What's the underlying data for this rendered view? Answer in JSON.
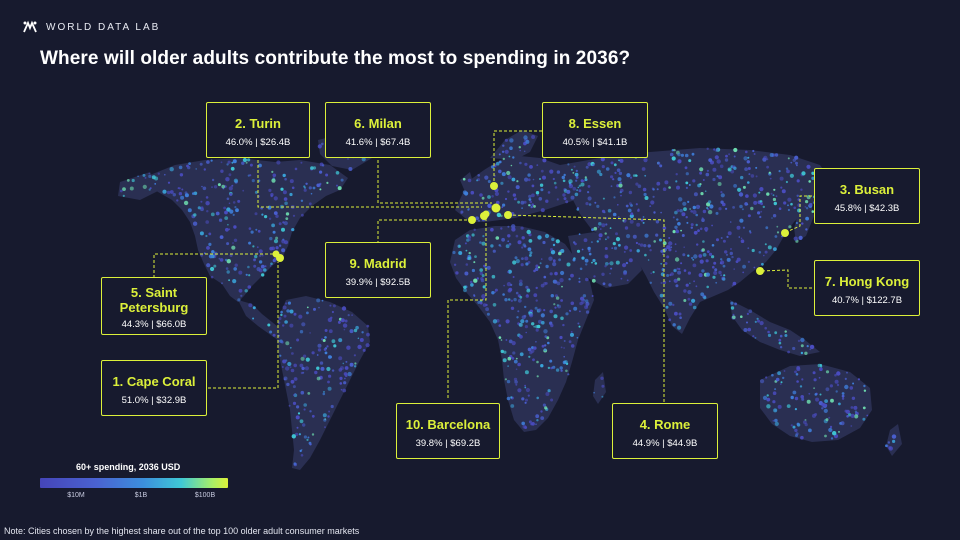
{
  "brand": {
    "name": "WORLD DATA LAB"
  },
  "title": "Where will older adults contribute the most to spending in 2036?",
  "colors": {
    "background": "#171a2e",
    "land": "#2a2f52",
    "highlight": "#dcf03a",
    "callout_border": "#dcf03a"
  },
  "callouts": [
    {
      "rank": "1",
      "city": "Cape Coral",
      "label": "1. Cape Coral",
      "stat": "51.0% | $32.9B",
      "share_pct": 51.0,
      "spending_billion_usd": 32.9
    },
    {
      "rank": "2",
      "city": "Turin",
      "label": "2. Turin",
      "stat": "46.0% | $26.4B",
      "share_pct": 46.0,
      "spending_billion_usd": 26.4
    },
    {
      "rank": "3",
      "city": "Busan",
      "label": "3. Busan",
      "stat": "45.8% | $42.3B",
      "share_pct": 45.8,
      "spending_billion_usd": 42.3
    },
    {
      "rank": "4",
      "city": "Rome",
      "label": "4. Rome",
      "stat": "44.9% | $44.9B",
      "share_pct": 44.9,
      "spending_billion_usd": 44.9
    },
    {
      "rank": "5",
      "city": "Saint Petersburg",
      "label": "5. Saint Petersburg",
      "stat": "44.3% | $66.0B",
      "share_pct": 44.3,
      "spending_billion_usd": 66.0
    },
    {
      "rank": "6",
      "city": "Milan",
      "label": "6. Milan",
      "stat": "41.6% | $67.4B",
      "share_pct": 41.6,
      "spending_billion_usd": 67.4
    },
    {
      "rank": "7",
      "city": "Hong Kong",
      "label": "7. Hong Kong",
      "stat": "40.7% | $122.7B",
      "share_pct": 40.7,
      "spending_billion_usd": 122.7
    },
    {
      "rank": "8",
      "city": "Essen",
      "label": "8. Essen",
      "stat": "40.5% | $41.1B",
      "share_pct": 40.5,
      "spending_billion_usd": 41.1
    },
    {
      "rank": "9",
      "city": "Madrid",
      "label": "9. Madrid",
      "stat": "39.9% | $92.5B",
      "share_pct": 39.9,
      "spending_billion_usd": 92.5
    },
    {
      "rank": "10",
      "city": "Barcelona",
      "label": "10. Barcelona",
      "stat": "39.8% | $69.2B",
      "share_pct": 39.8,
      "spending_billion_usd": 69.2
    }
  ],
  "legend": {
    "title": "60+ spending, 2036 USD",
    "ticks": [
      "$10M",
      "$1B",
      "$100B"
    ],
    "colors": [
      "#4545b8",
      "#3c8fdc",
      "#3fc8d6",
      "#dcf03a"
    ]
  },
  "note": "Note: Cities chosen by the highest share out of the top 100 older adult consumer markets"
}
